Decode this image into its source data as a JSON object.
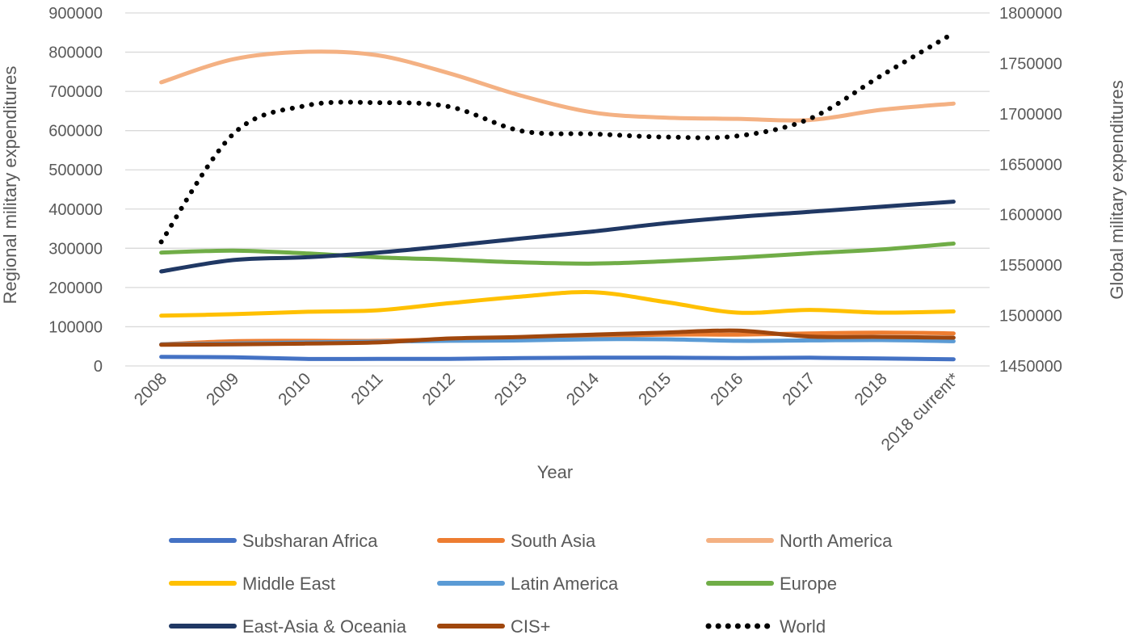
{
  "chart_data": {
    "type": "line",
    "title": "",
    "xlabel": "Year",
    "ylabel": "Regional military expenditures",
    "y2label": "Global military expenditures",
    "ylim": [
      0,
      900000
    ],
    "y2lim": [
      1450000,
      1800000
    ],
    "yticks": [
      "0",
      "100000",
      "200000",
      "300000",
      "400000",
      "500000",
      "600000",
      "700000",
      "800000",
      "900000"
    ],
    "y2ticks": [
      "1450000",
      "1500000",
      "1550000",
      "1600000",
      "1650000",
      "1700000",
      "1750000",
      "1800000"
    ],
    "categories": [
      "2008",
      "2009",
      "2010",
      "2011",
      "2012",
      "2013",
      "2014",
      "2015",
      "2016",
      "2017",
      "2018",
      "2018 current*"
    ],
    "grid": true,
    "legend_position": "bottom",
    "series": [
      {
        "name": "Subsharan Africa",
        "axis": "left",
        "color": "#4472C4",
        "dash": "solid",
        "values": [
          23000,
          22000,
          18000,
          18000,
          18000,
          20000,
          21000,
          21000,
          20000,
          21000,
          19000,
          17000
        ]
      },
      {
        "name": "South Asia",
        "axis": "left",
        "color": "#ED7D31",
        "dash": "solid",
        "values": [
          55000,
          63000,
          64000,
          64000,
          68000,
          73000,
          76000,
          80000,
          80000,
          83000,
          85000,
          83000
        ]
      },
      {
        "name": "North America",
        "axis": "left",
        "color": "#F4B183",
        "dash": "solid",
        "values": [
          723000,
          782000,
          801000,
          792000,
          746000,
          689000,
          646000,
          633000,
          630000,
          627000,
          653000,
          669000
        ]
      },
      {
        "name": "Middle East",
        "axis": "left",
        "color": "#FFC000",
        "dash": "solid",
        "values": [
          128000,
          132000,
          138000,
          142000,
          160000,
          177000,
          188000,
          163000,
          136000,
          143000,
          136000,
          139000
        ]
      },
      {
        "name": "Latin America",
        "axis": "left",
        "color": "#5B9BD5",
        "dash": "solid",
        "values": [
          55000,
          57000,
          60000,
          62000,
          64000,
          65000,
          68000,
          68000,
          64000,
          65000,
          66000,
          63000
        ]
      },
      {
        "name": "Europe",
        "axis": "left",
        "color": "#70AD47",
        "dash": "solid",
        "values": [
          289000,
          294000,
          287000,
          277000,
          271000,
          264000,
          261000,
          267000,
          276000,
          287000,
          297000,
          312000
        ]
      },
      {
        "name": "East-Asia & Oceania",
        "axis": "left",
        "color": "#203864",
        "dash": "solid",
        "values": [
          241000,
          270000,
          277000,
          289000,
          306000,
          325000,
          343000,
          364000,
          380000,
          393000,
          406000,
          419000
        ]
      },
      {
        "name": "CIS+",
        "axis": "left",
        "color": "#A0470D",
        "dash": "solid",
        "values": [
          54000,
          55000,
          57000,
          60000,
          70000,
          74000,
          80000,
          85000,
          90000,
          75000,
          74000,
          72000
        ]
      },
      {
        "name": "World",
        "axis": "right",
        "color": "#000000",
        "dash": "dotted",
        "values": [
          1573000,
          1680000,
          1708000,
          1711000,
          1707000,
          1683000,
          1680000,
          1677000,
          1678000,
          1695000,
          1738000,
          1780000
        ]
      }
    ]
  }
}
